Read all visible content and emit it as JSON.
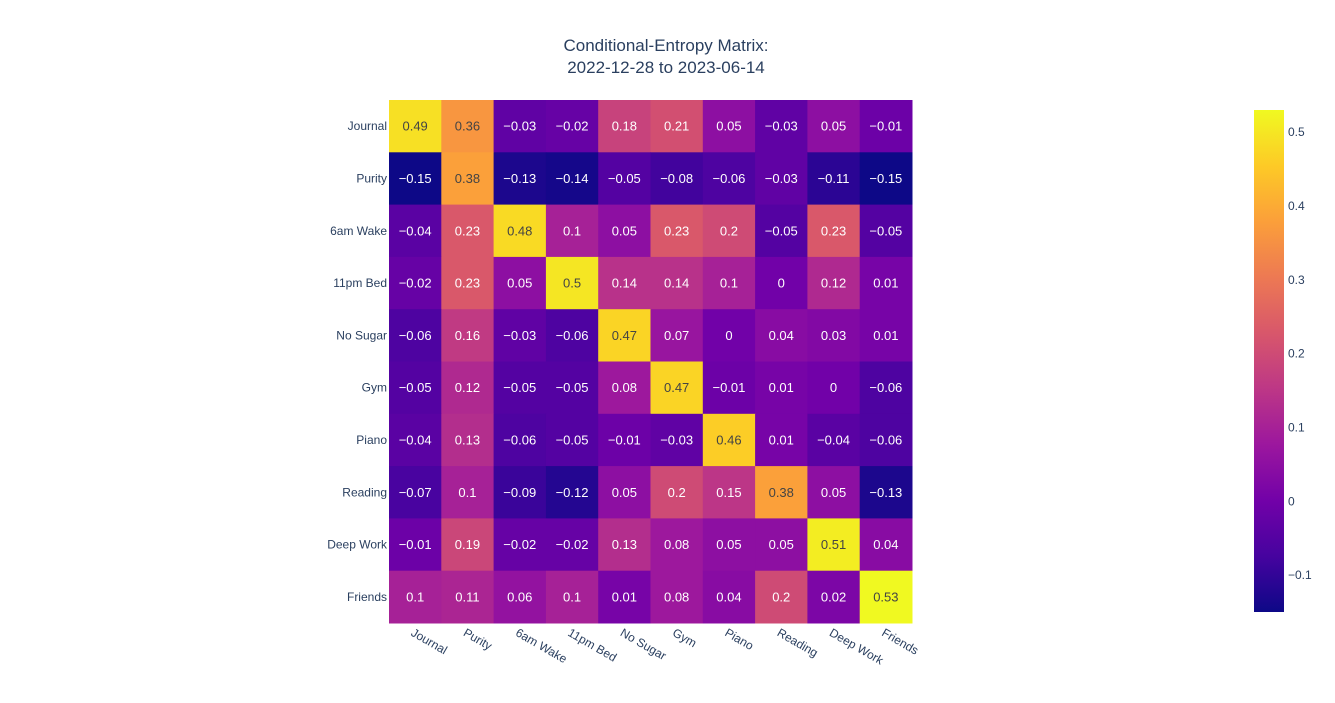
{
  "chart_data": {
    "type": "heatmap",
    "title_lines": [
      "Conditional-Entropy Matrix:",
      "2022-12-28 to 2023-06-14"
    ],
    "x_categories": [
      "Journal",
      "Purity",
      "6am Wake",
      "11pm Bed",
      "No Sugar",
      "Gym",
      "Piano",
      "Reading",
      "Deep Work",
      "Friends"
    ],
    "y_categories": [
      "Journal",
      "Purity",
      "6am Wake",
      "11pm Bed",
      "No Sugar",
      "Gym",
      "Piano",
      "Reading",
      "Deep Work",
      "Friends"
    ],
    "values": [
      [
        0.49,
        0.36,
        -0.03,
        -0.02,
        0.18,
        0.21,
        0.05,
        -0.03,
        0.05,
        -0.01
      ],
      [
        -0.15,
        0.38,
        -0.13,
        -0.14,
        -0.05,
        -0.08,
        -0.06,
        -0.03,
        -0.11,
        -0.15
      ],
      [
        -0.04,
        0.23,
        0.48,
        0.1,
        0.05,
        0.23,
        0.2,
        -0.05,
        0.23,
        -0.05
      ],
      [
        -0.02,
        0.23,
        0.05,
        0.5,
        0.14,
        0.14,
        0.1,
        0,
        0.12,
        0.01
      ],
      [
        -0.06,
        0.16,
        -0.03,
        -0.06,
        0.47,
        0.07,
        0,
        0.04,
        0.03,
        0.01
      ],
      [
        -0.05,
        0.12,
        -0.05,
        -0.05,
        0.08,
        0.47,
        -0.01,
        0.01,
        0,
        -0.06
      ],
      [
        -0.04,
        0.13,
        -0.06,
        -0.05,
        -0.01,
        -0.03,
        0.46,
        0.01,
        -0.04,
        -0.06
      ],
      [
        -0.07,
        0.1,
        -0.09,
        -0.12,
        0.05,
        0.2,
        0.15,
        0.38,
        0.05,
        -0.13
      ],
      [
        -0.01,
        0.19,
        -0.02,
        -0.02,
        0.13,
        0.08,
        0.05,
        0.05,
        0.51,
        0.04
      ],
      [
        0.1,
        0.11,
        0.06,
        0.1,
        0.01,
        0.08,
        0.04,
        0.2,
        0.02,
        0.53
      ]
    ],
    "zrange": [
      -0.15,
      0.53
    ],
    "colorscale": [
      "#0d0887",
      "#46039f",
      "#7201a8",
      "#9c179e",
      "#bd3786",
      "#d8576b",
      "#ed7953",
      "#fb9f3a",
      "#fdca26",
      "#f0f921"
    ],
    "colorbar_ticks": [
      -0.1,
      0,
      0.1,
      0.2,
      0.3,
      0.4,
      0.5
    ],
    "colorbar_tick_labels": [
      "−0.1",
      "0",
      "0.1",
      "0.2",
      "0.3",
      "0.4",
      "0.5"
    ],
    "grid": false,
    "legend": "colorbar-right"
  }
}
